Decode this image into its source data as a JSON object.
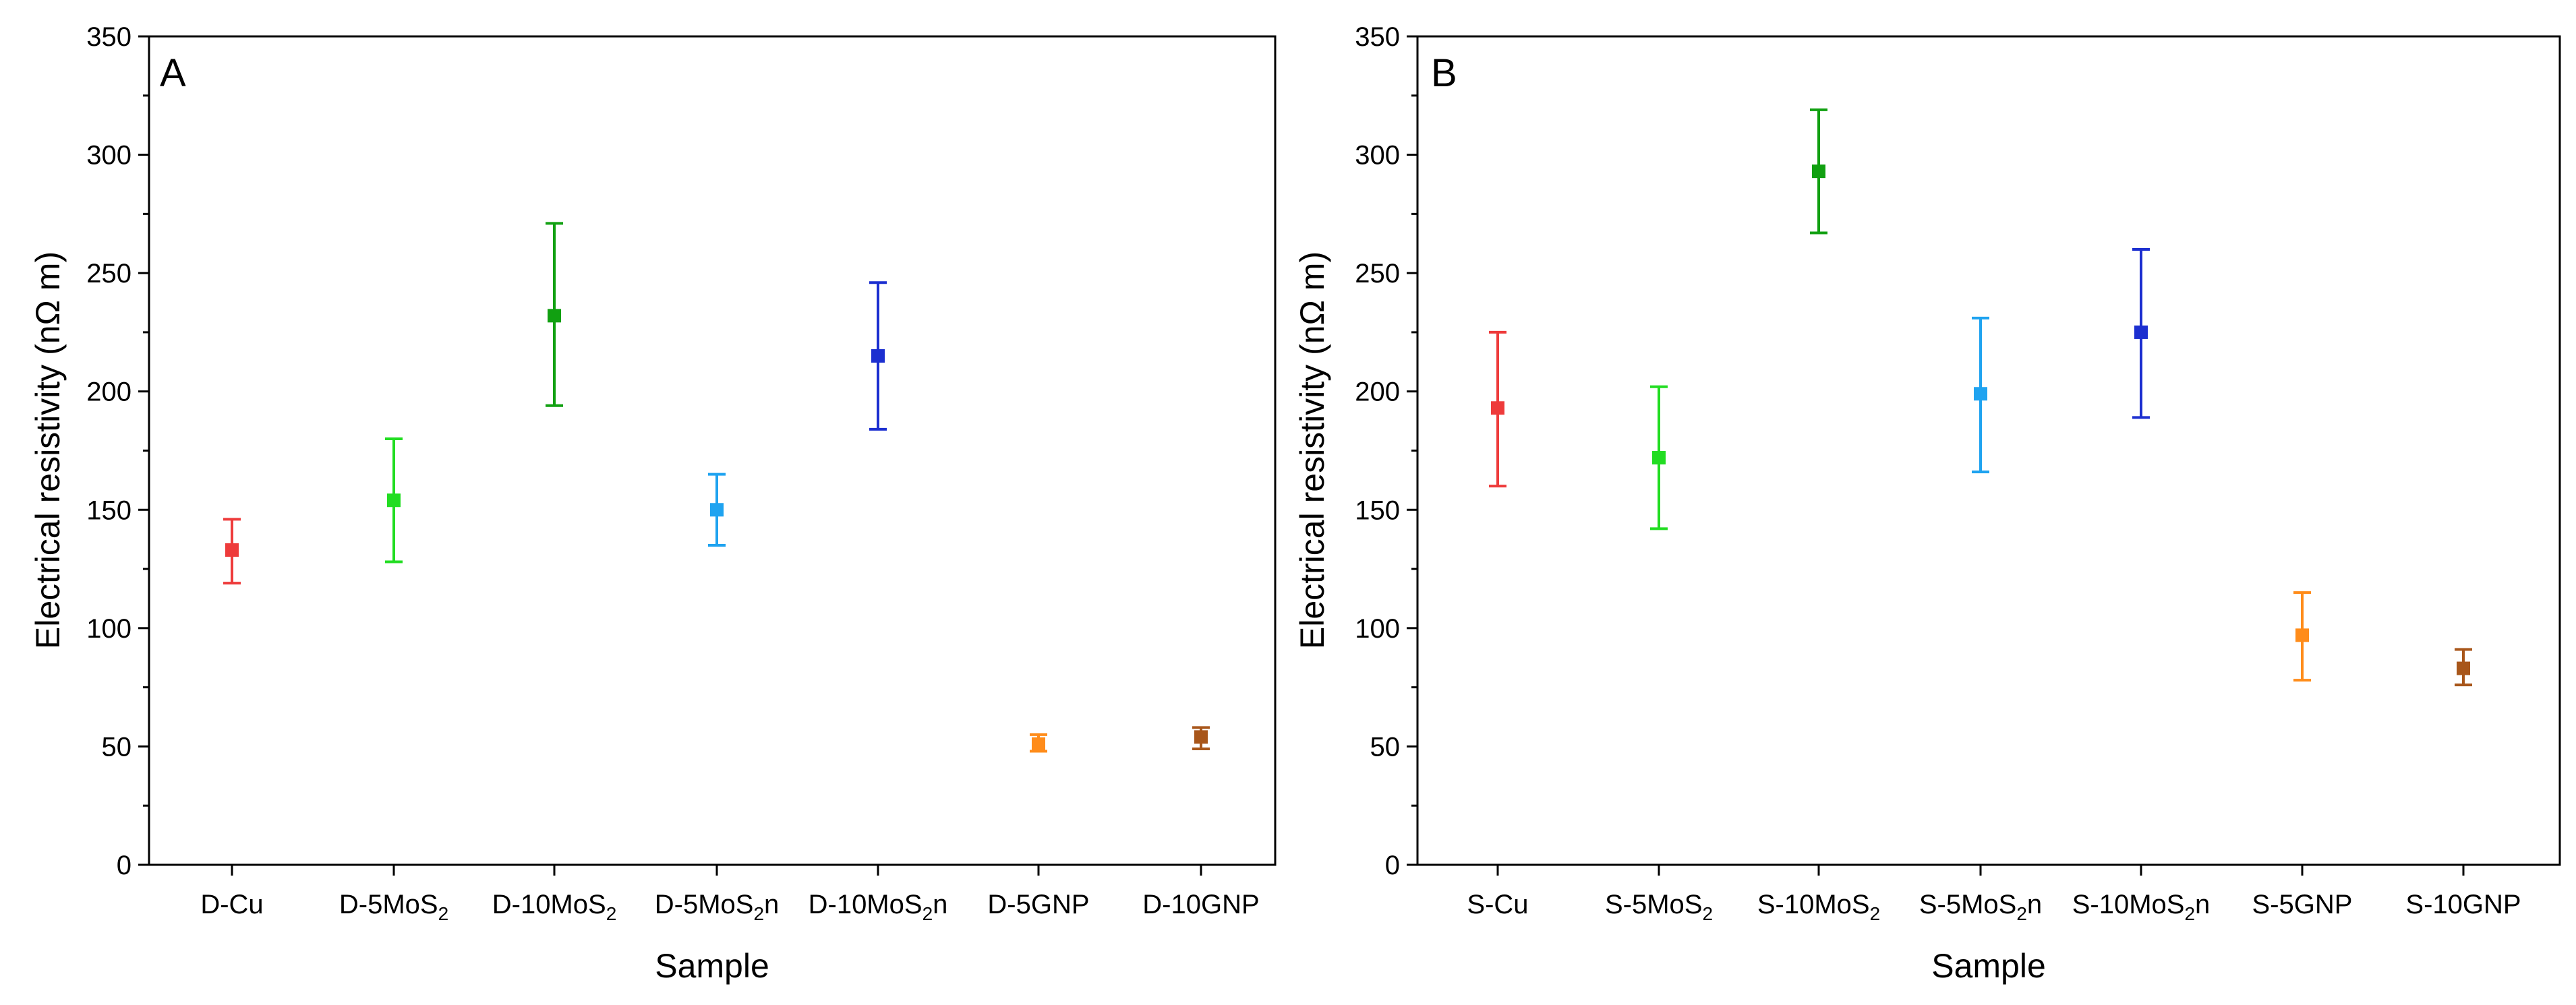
{
  "chart_data": [
    {
      "type": "scatter",
      "panel_label": "A",
      "xlabel": "Sample",
      "ylabel": "Electrical resistivity (nΩ m)",
      "ylim": [
        0,
        350
      ],
      "yticks": [
        0,
        50,
        100,
        150,
        200,
        250,
        300,
        350
      ],
      "yminor_step": 25,
      "categories": [
        {
          "base": "D-Cu",
          "sub": "",
          "tail": ""
        },
        {
          "base": "D-5MoS",
          "sub": "2",
          "tail": ""
        },
        {
          "base": "D-10MoS",
          "sub": "2",
          "tail": ""
        },
        {
          "base": "D-5MoS",
          "sub": "2",
          "tail": "n"
        },
        {
          "base": "D-10MoS",
          "sub": "2",
          "tail": "n"
        },
        {
          "base": "D-5GNP",
          "sub": "",
          "tail": ""
        },
        {
          "base": "D-10GNP",
          "sub": "",
          "tail": ""
        }
      ],
      "series": [
        {
          "name": "D-Cu",
          "value": 133,
          "err_low": 119,
          "err_high": 146,
          "color": "#ee3b3b"
        },
        {
          "name": "D-5MoS2",
          "value": 154,
          "err_low": 128,
          "err_high": 180,
          "color": "#22dd22"
        },
        {
          "name": "D-10MoS2",
          "value": 232,
          "err_low": 194,
          "err_high": 271,
          "color": "#11a011"
        },
        {
          "name": "D-5MoS2n",
          "value": 150,
          "err_low": 135,
          "err_high": 165,
          "color": "#1fa3f0"
        },
        {
          "name": "D-10MoS2n",
          "value": 215,
          "err_low": 184,
          "err_high": 246,
          "color": "#1c2fd0"
        },
        {
          "name": "D-5GNP",
          "value": 51,
          "err_low": 48,
          "err_high": 55,
          "color": "#ff8c1a"
        },
        {
          "name": "D-10GNP",
          "value": 54,
          "err_low": 49,
          "err_high": 58,
          "color": "#a8561a"
        }
      ]
    },
    {
      "type": "scatter",
      "panel_label": "B",
      "xlabel": "Sample",
      "ylabel": "Electrical resistivity (nΩ m)",
      "ylim": [
        0,
        350
      ],
      "yticks": [
        0,
        50,
        100,
        150,
        200,
        250,
        300,
        350
      ],
      "yminor_step": 25,
      "categories": [
        {
          "base": "S-Cu",
          "sub": "",
          "tail": ""
        },
        {
          "base": "S-5MoS",
          "sub": "2",
          "tail": ""
        },
        {
          "base": "S-10MoS",
          "sub": "2",
          "tail": ""
        },
        {
          "base": "S-5MoS",
          "sub": "2",
          "tail": "n"
        },
        {
          "base": "S-10MoS",
          "sub": "2",
          "tail": "n"
        },
        {
          "base": "S-5GNP",
          "sub": "",
          "tail": ""
        },
        {
          "base": "S-10GNP",
          "sub": "",
          "tail": ""
        }
      ],
      "series": [
        {
          "name": "S-Cu",
          "value": 193,
          "err_low": 160,
          "err_high": 225,
          "color": "#ee3b3b"
        },
        {
          "name": "S-5MoS2",
          "value": 172,
          "err_low": 142,
          "err_high": 202,
          "color": "#22dd22"
        },
        {
          "name": "S-10MoS2",
          "value": 293,
          "err_low": 267,
          "err_high": 319,
          "color": "#11a011"
        },
        {
          "name": "S-5MoS2n",
          "value": 199,
          "err_low": 166,
          "err_high": 231,
          "color": "#1fa3f0"
        },
        {
          "name": "S-10MoS2n",
          "value": 225,
          "err_low": 189,
          "err_high": 260,
          "color": "#1c2fd0"
        },
        {
          "name": "S-5GNP",
          "value": 97,
          "err_low": 78,
          "err_high": 115,
          "color": "#ff8c1a"
        },
        {
          "name": "S-10GNP",
          "value": 83,
          "err_low": 76,
          "err_high": 91,
          "color": "#a8561a"
        }
      ]
    }
  ]
}
